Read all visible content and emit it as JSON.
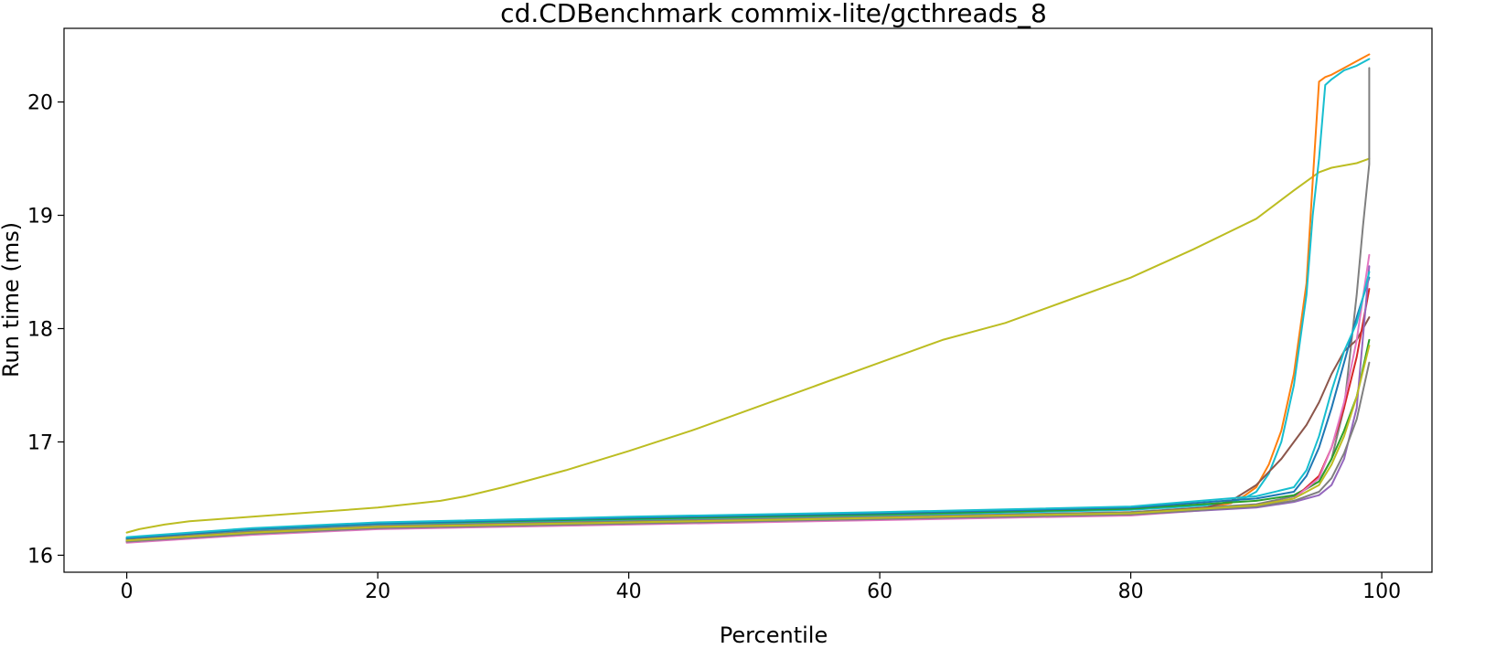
{
  "chart_data": {
    "type": "line",
    "title": "cd.CDBenchmark commix-lite/gcthreads_8",
    "xlabel": "Percentile",
    "ylabel": "Run time (ms)",
    "xlim": [
      -5,
      104
    ],
    "ylim": [
      15.85,
      20.65
    ],
    "xticks": [
      0,
      20,
      40,
      60,
      80,
      100
    ],
    "yticks": [
      16,
      17,
      18,
      19,
      20
    ],
    "grid": false,
    "legend": "none",
    "series": [
      {
        "color": "#bcbd22",
        "x": [
          0,
          1,
          2,
          3,
          5,
          10,
          15,
          20,
          25,
          27,
          30,
          35,
          40,
          45,
          50,
          55,
          60,
          65,
          70,
          75,
          80,
          85,
          90,
          93,
          95,
          96,
          97,
          98,
          99
        ],
        "y": [
          16.2,
          16.23,
          16.25,
          16.27,
          16.3,
          16.34,
          16.38,
          16.42,
          16.48,
          16.52,
          16.6,
          16.75,
          16.92,
          17.1,
          17.3,
          17.5,
          17.7,
          17.9,
          18.05,
          18.25,
          18.45,
          18.7,
          18.97,
          19.22,
          19.38,
          19.42,
          19.44,
          19.46,
          19.5
        ]
      },
      {
        "color": "#ff7f0e",
        "x": [
          0,
          10,
          20,
          40,
          60,
          80,
          86,
          88,
          89,
          90,
          91,
          92,
          93,
          94,
          94.5,
          95,
          95.5,
          96,
          97,
          98,
          99
        ],
        "y": [
          16.12,
          16.2,
          16.25,
          16.29,
          16.33,
          16.38,
          16.42,
          16.46,
          16.52,
          16.6,
          16.8,
          17.1,
          17.6,
          18.4,
          19.3,
          20.18,
          20.22,
          20.24,
          20.3,
          20.36,
          20.42
        ]
      },
      {
        "color": "#17becf",
        "x": [
          0,
          10,
          20,
          40,
          60,
          80,
          86,
          88,
          89,
          90,
          91,
          92,
          93,
          94,
          94.5,
          95,
          95.5,
          96,
          97,
          98,
          99
        ],
        "y": [
          16.14,
          16.22,
          16.27,
          16.31,
          16.35,
          16.4,
          16.44,
          16.47,
          16.5,
          16.56,
          16.72,
          17.0,
          17.5,
          18.3,
          19.0,
          19.5,
          20.15,
          20.2,
          20.28,
          20.32,
          20.38
        ]
      },
      {
        "color": "#7f7f7f",
        "x": [
          0,
          10,
          20,
          40,
          60,
          80,
          90,
          93,
          95,
          96,
          97,
          98,
          98.5,
          99,
          99,
          99,
          99
        ],
        "y": [
          16.14,
          16.21,
          16.26,
          16.3,
          16.34,
          16.38,
          16.45,
          16.52,
          16.65,
          16.85,
          17.3,
          18.3,
          18.9,
          19.45,
          19.8,
          20.1,
          20.3
        ]
      },
      {
        "color": "#8c564b",
        "x": [
          0,
          10,
          20,
          40,
          60,
          80,
          86,
          88,
          90,
          92,
          94,
          95,
          96,
          97,
          98,
          99
        ],
        "y": [
          16.13,
          16.2,
          16.25,
          16.29,
          16.33,
          16.37,
          16.42,
          16.48,
          16.62,
          16.85,
          17.15,
          17.35,
          17.6,
          17.8,
          17.9,
          18.1
        ]
      },
      {
        "color": "#2ca02c",
        "x": [
          0,
          10,
          20,
          40,
          60,
          80,
          90,
          93,
          95,
          96,
          97,
          98,
          99
        ],
        "y": [
          16.15,
          16.23,
          16.28,
          16.32,
          16.36,
          16.41,
          16.48,
          16.53,
          16.65,
          16.85,
          17.1,
          17.4,
          17.9
        ]
      },
      {
        "color": "#1f77b4",
        "x": [
          0,
          10,
          20,
          40,
          60,
          80,
          90,
          93,
          94,
          95,
          96,
          97,
          98,
          99
        ],
        "y": [
          16.15,
          16.23,
          16.28,
          16.33,
          16.37,
          16.42,
          16.5,
          16.56,
          16.7,
          16.95,
          17.3,
          17.7,
          18.1,
          18.45
        ]
      },
      {
        "color": "#d62728",
        "x": [
          0,
          10,
          20,
          40,
          60,
          80,
          90,
          93,
          95,
          96,
          97,
          98,
          99
        ],
        "y": [
          16.12,
          16.19,
          16.24,
          16.28,
          16.32,
          16.36,
          16.44,
          16.5,
          16.7,
          16.95,
          17.3,
          17.75,
          18.35
        ]
      },
      {
        "color": "#e377c2",
        "x": [
          0,
          10,
          20,
          40,
          60,
          80,
          90,
          93,
          95,
          96,
          97,
          98,
          99
        ],
        "y": [
          16.11,
          16.18,
          16.23,
          16.27,
          16.31,
          16.35,
          16.43,
          16.5,
          16.68,
          16.95,
          17.35,
          17.9,
          18.65
        ]
      },
      {
        "color": "#9467bd",
        "x": [
          0,
          10,
          20,
          40,
          60,
          80,
          90,
          93,
          95,
          96,
          97,
          98,
          99
        ],
        "y": [
          16.12,
          16.19,
          16.24,
          16.28,
          16.32,
          16.36,
          16.42,
          16.47,
          16.53,
          16.62,
          16.85,
          17.3,
          18.55
        ]
      },
      {
        "color": "#17becf",
        "x": [
          0,
          10,
          20,
          40,
          60,
          80,
          90,
          93,
          94,
          95,
          96,
          97,
          98,
          99
        ],
        "y": [
          16.16,
          16.24,
          16.29,
          16.34,
          16.38,
          16.43,
          16.52,
          16.6,
          16.75,
          17.05,
          17.45,
          17.8,
          18.05,
          18.5
        ]
      },
      {
        "color": "#7f7f7f",
        "x": [
          0,
          10,
          20,
          40,
          60,
          80,
          90,
          93,
          95,
          96,
          97,
          98,
          99
        ],
        "y": [
          16.12,
          16.19,
          16.24,
          16.28,
          16.32,
          16.36,
          16.43,
          16.48,
          16.56,
          16.68,
          16.9,
          17.2,
          17.7
        ]
      },
      {
        "color": "#bcbd22",
        "x": [
          0,
          10,
          20,
          40,
          60,
          80,
          90,
          93,
          95,
          96,
          97,
          98,
          99
        ],
        "y": [
          16.13,
          16.2,
          16.25,
          16.29,
          16.33,
          16.37,
          16.44,
          16.5,
          16.62,
          16.8,
          17.05,
          17.4,
          17.85
        ]
      }
    ]
  }
}
